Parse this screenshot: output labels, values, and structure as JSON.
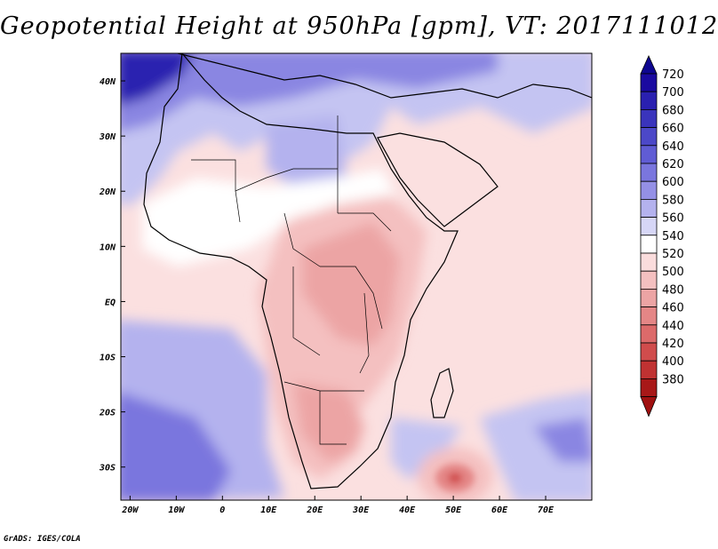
{
  "title": "Geopotential Height at 950hPa [gpm], VT: 2017111012",
  "credit": "GrADS: IGES/COLA",
  "map": {
    "region": "Africa and surrounding oceans",
    "lon_range": [
      -22,
      80
    ],
    "lat_range": [
      -36,
      45
    ]
  },
  "axes": {
    "x_ticks": [
      {
        "label": "20W",
        "value": -20
      },
      {
        "label": "10W",
        "value": -10
      },
      {
        "label": "0",
        "value": 0
      },
      {
        "label": "10E",
        "value": 10
      },
      {
        "label": "20E",
        "value": 20
      },
      {
        "label": "30E",
        "value": 30
      },
      {
        "label": "40E",
        "value": 40
      },
      {
        "label": "50E",
        "value": 50
      },
      {
        "label": "60E",
        "value": 60
      },
      {
        "label": "70E",
        "value": 70
      }
    ],
    "y_ticks": [
      {
        "label": "40N",
        "value": 40
      },
      {
        "label": "30N",
        "value": 30
      },
      {
        "label": "20N",
        "value": 20
      },
      {
        "label": "10N",
        "value": 10
      },
      {
        "label": "EQ",
        "value": 0
      },
      {
        "label": "10S",
        "value": -10
      },
      {
        "label": "20S",
        "value": -20
      },
      {
        "label": "30S",
        "value": -30
      }
    ]
  },
  "colorbar": {
    "levels": [
      {
        "label": "720",
        "color": "#1a0aa0"
      },
      {
        "label": "700",
        "color": "#2a20b0"
      },
      {
        "label": "680",
        "color": "#3a34bc"
      },
      {
        "label": "660",
        "color": "#4c48c8"
      },
      {
        "label": "640",
        "color": "#605cd4"
      },
      {
        "label": "620",
        "color": "#7a76de"
      },
      {
        "label": "600",
        "color": "#9490e6"
      },
      {
        "label": "580",
        "color": "#b4b2ee"
      },
      {
        "label": "560",
        "color": "#d6d6f6"
      },
      {
        "label": "540",
        "color": "#ffffff"
      },
      {
        "label": "520",
        "color": "#fadcdc"
      },
      {
        "label": "500",
        "color": "#f4c0c0"
      },
      {
        "label": "480",
        "color": "#eca4a4"
      },
      {
        "label": "460",
        "color": "#e48686"
      },
      {
        "label": "440",
        "color": "#dc6a6a"
      },
      {
        "label": "420",
        "color": "#d04c4c"
      },
      {
        "label": "400",
        "color": "#c03232"
      },
      {
        "label": "380",
        "color": "#a81818"
      }
    ],
    "top_color": "#0e0690",
    "bottom_color": "#a01010"
  }
}
